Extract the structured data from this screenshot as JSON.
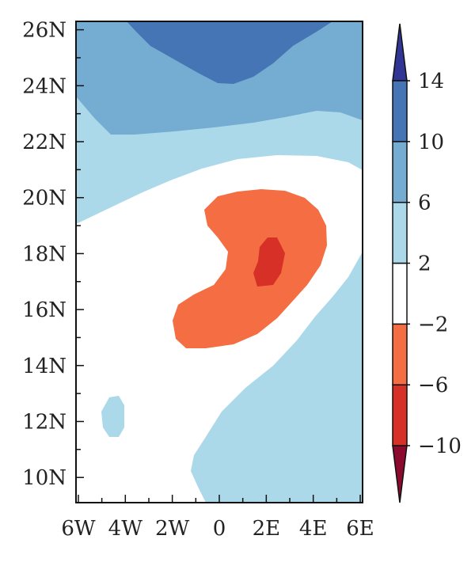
{
  "chart_data": {
    "type": "contour",
    "title": "",
    "xlabel": "",
    "ylabel": "",
    "x_ticks": [
      -6,
      -5,
      -4,
      -3,
      -2,
      -1,
      0,
      1,
      2,
      3,
      4,
      5,
      6
    ],
    "x_tick_labels": [
      "6W",
      "4W",
      "2W",
      "0",
      "2E",
      "4E",
      "6E"
    ],
    "x_label_values": [
      -6,
      -4,
      -2,
      0,
      2,
      4,
      6
    ],
    "y_label_values": [
      10,
      12,
      14,
      16,
      18,
      20,
      22,
      24,
      26
    ],
    "y_tick_labels": [
      "10N",
      "12N",
      "14N",
      "16N",
      "18N",
      "20N",
      "22N",
      "24N",
      "26N"
    ],
    "xlim": [
      -6.1,
      6.1
    ],
    "ylim": [
      9.1,
      26.3
    ],
    "colorbar": {
      "levels": [
        -10,
        -6,
        -2,
        2,
        6,
        10,
        14
      ],
      "level_labels": [
        "−10",
        "−6",
        "−2",
        "2",
        "6",
        "10",
        "14"
      ],
      "colors": [
        "#8b0a2e",
        "#d73027",
        "#f46d43",
        "#ffffff",
        "#abd9e9",
        "#74add1",
        "#4575b4",
        "#313695"
      ],
      "extend": "both",
      "placement": "right"
    },
    "regions": [
      {
        "name": "2 to 6",
        "color": "#abd9e9"
      },
      {
        "name": "6 to 10",
        "color": "#74add1"
      },
      {
        "name": "10 to 14",
        "color": "#4575b4"
      },
      {
        "name": "-6 to -2",
        "color": "#f46d43"
      },
      {
        "name": "-10 to -6",
        "color": "#d73027"
      }
    ]
  }
}
